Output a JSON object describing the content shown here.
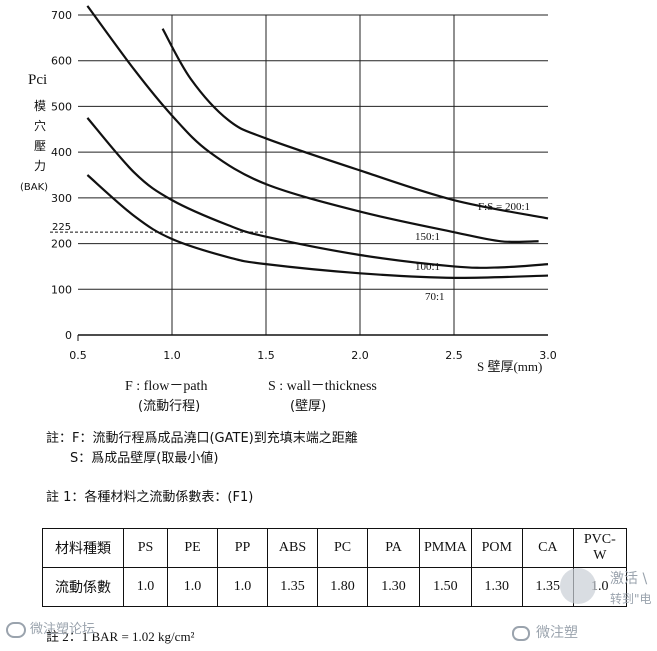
{
  "chart_data": {
    "type": "line",
    "ylabel_lines": [
      "Pci",
      "模",
      "穴",
      "壓",
      "力"
    ],
    "yunit": "(BAK)",
    "xlabel": "S 壁厚(mm)",
    "xlim": [
      0.5,
      3.0
    ],
    "ylim": [
      0,
      700
    ],
    "xticks": [
      "0.5",
      "1.0",
      "1.5",
      "2.0",
      "2.5",
      "3.0"
    ],
    "yticks": [
      "0",
      "100",
      "200",
      "300",
      "400",
      "500",
      "600",
      "700"
    ],
    "grid": true,
    "reference": {
      "y": 225,
      "label": "225"
    },
    "series": [
      {
        "name": "F:S = 200:1",
        "x": [
          0.95,
          1.1,
          1.3,
          1.5,
          2.0,
          2.5,
          3.0
        ],
        "y": [
          670,
          560,
          470,
          430,
          360,
          295,
          255
        ]
      },
      {
        "name": "150:1",
        "x": [
          0.55,
          0.8,
          1.0,
          1.2,
          1.5,
          2.0,
          2.5,
          2.75,
          2.95
        ],
        "y": [
          720,
          580,
          480,
          400,
          330,
          270,
          225,
          205,
          205
        ]
      },
      {
        "name": "100:1",
        "x": [
          0.55,
          0.8,
          1.0,
          1.3,
          1.5,
          2.0,
          2.5,
          2.75,
          3.0
        ],
        "y": [
          475,
          355,
          295,
          240,
          215,
          175,
          150,
          148,
          155
        ]
      },
      {
        "name": "70:1",
        "x": [
          0.55,
          0.8,
          1.0,
          1.3,
          1.5,
          2.0,
          2.5,
          3.0
        ],
        "y": [
          350,
          260,
          210,
          170,
          155,
          135,
          125,
          130
        ]
      }
    ]
  },
  "legend_notes": {
    "f": "F : flow－path",
    "f_cn": "(流動行程)",
    "s": "S : wall－thickness",
    "s_cn": "(壁厚)"
  },
  "notes": {
    "note_line1": "註：F：流動行程爲成品澆口(GATE)到充填末端之距離",
    "note_line2": "S：爲成品壁厚(取最小値)",
    "note1": "註 1：各種材料之流動係數表：(F1)",
    "note2": "註 2：1 BAR = 1.02 kg/cm²"
  },
  "table": {
    "row1": [
      "材料種類",
      "PS",
      "PE",
      "PP",
      "ABS",
      "PC",
      "PA",
      "PMMA",
      "POM",
      "CA",
      "PVC-W"
    ],
    "row2": [
      "流動係數",
      "1.0",
      "1.0",
      "1.0",
      "1.35",
      "1.80",
      "1.30",
      "1.50",
      "1.30",
      "1.35",
      "1.0"
    ]
  },
  "watermarks": {
    "left": "微注塑论坛",
    "right": "微注塑",
    "corner1": "激活 \\",
    "corner2": "转到\"电"
  }
}
